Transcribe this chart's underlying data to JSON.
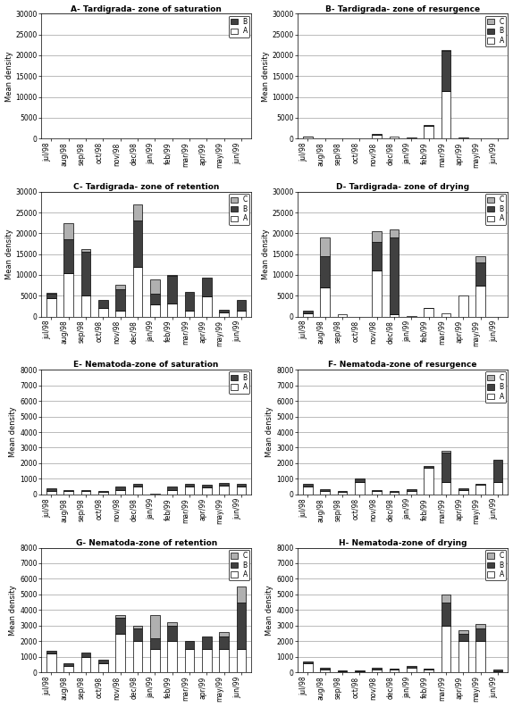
{
  "months": [
    "jul/98",
    "aug/98",
    "sep/98",
    "oct/98",
    "nov/98",
    "dec/98",
    "jan/99",
    "feb/99",
    "mar/99",
    "apr/99",
    "may/99",
    "jun/99"
  ],
  "panels": [
    {
      "title": "A- Tardigrada- zone of saturation",
      "A": [
        50,
        0,
        0,
        0,
        0,
        0,
        0,
        50,
        0,
        0,
        0,
        0
      ],
      "B": [
        30,
        0,
        0,
        0,
        0,
        0,
        0,
        30,
        0,
        0,
        0,
        0
      ],
      "C": [
        0,
        0,
        0,
        0,
        0,
        0,
        0,
        0,
        0,
        0,
        0,
        0
      ],
      "ylim": 30000,
      "yticks": [
        0,
        5000,
        10000,
        15000,
        20000,
        25000,
        30000
      ],
      "legend_layers": [
        "B",
        "A"
      ],
      "has_C": false
    },
    {
      "title": "B- Tardigrada- zone of resurgence",
      "A": [
        400,
        0,
        0,
        0,
        900,
        400,
        100,
        3000,
        11500,
        0,
        0,
        0
      ],
      "B": [
        100,
        0,
        0,
        0,
        300,
        0,
        100,
        200,
        9500,
        300,
        0,
        0
      ],
      "C": [
        0,
        0,
        0,
        0,
        0,
        0,
        0,
        0,
        200,
        0,
        0,
        0
      ],
      "ylim": 30000,
      "yticks": [
        0,
        5000,
        10000,
        15000,
        20000,
        25000,
        30000
      ],
      "legend_layers": [
        "C",
        "B",
        "A"
      ],
      "has_C": true
    },
    {
      "title": "C- Tardigrada- zone of retention",
      "A": [
        4500,
        10500,
        5000,
        2000,
        1500,
        12000,
        3000,
        3200,
        1500,
        4800,
        1000,
        1500
      ],
      "B": [
        1000,
        8000,
        10500,
        2000,
        5000,
        11000,
        2500,
        6500,
        4500,
        4600,
        700,
        2500
      ],
      "C": [
        200,
        4000,
        800,
        0,
        1200,
        4000,
        3500,
        200,
        0,
        0,
        0,
        0
      ],
      "ylim": 30000,
      "yticks": [
        0,
        5000,
        10000,
        15000,
        20000,
        25000,
        30000
      ],
      "legend_layers": [
        "C",
        "B",
        "A"
      ],
      "has_C": true
    },
    {
      "title": "D- Tardigrada- zone of drying",
      "A": [
        700,
        7000,
        500,
        0,
        11000,
        500,
        200,
        2000,
        700,
        5000,
        7500,
        0
      ],
      "B": [
        700,
        7500,
        0,
        0,
        7000,
        18500,
        0,
        100,
        0,
        0,
        5500,
        0
      ],
      "C": [
        0,
        4500,
        0,
        0,
        2500,
        2000,
        0,
        0,
        0,
        0,
        1500,
        0
      ],
      "ylim": 30000,
      "yticks": [
        0,
        5000,
        10000,
        15000,
        20000,
        25000,
        30000
      ],
      "legend_layers": [
        "C",
        "B",
        "A"
      ],
      "has_C": true
    },
    {
      "title": "E- Nematoda-zone of saturation",
      "A": [
        200,
        200,
        200,
        150,
        300,
        500,
        50,
        300,
        500,
        450,
        550,
        500
      ],
      "B": [
        200,
        100,
        100,
        100,
        200,
        200,
        0,
        200,
        200,
        150,
        200,
        200
      ],
      "C": [
        0,
        0,
        0,
        0,
        0,
        0,
        0,
        0,
        0,
        0,
        0,
        0
      ],
      "ylim": 8000,
      "yticks": [
        0,
        1000,
        2000,
        3000,
        4000,
        5000,
        6000,
        7000,
        8000
      ],
      "legend_layers": [
        "B",
        "A"
      ],
      "has_C": false
    },
    {
      "title": "F- Nematoda-zone of resurgence",
      "A": [
        500,
        250,
        150,
        800,
        200,
        150,
        250,
        1700,
        800,
        300,
        600,
        800
      ],
      "B": [
        200,
        100,
        50,
        200,
        100,
        50,
        100,
        100,
        1900,
        100,
        100,
        1400
      ],
      "C": [
        0,
        0,
        0,
        0,
        0,
        0,
        0,
        0,
        100,
        0,
        0,
        0
      ],
      "ylim": 8000,
      "yticks": [
        0,
        1000,
        2000,
        3000,
        4000,
        5000,
        6000,
        7000,
        8000
      ],
      "legend_layers": [
        "C",
        "B",
        "A"
      ],
      "has_C": true
    },
    {
      "title": "G- Nematoda-zone of retention",
      "A": [
        1200,
        400,
        1000,
        600,
        2500,
        2000,
        1500,
        2000,
        1500,
        1500,
        1500,
        1500
      ],
      "B": [
        200,
        200,
        300,
        200,
        1000,
        800,
        700,
        1000,
        500,
        800,
        800,
        3000
      ],
      "C": [
        0,
        0,
        0,
        0,
        200,
        200,
        1500,
        200,
        0,
        0,
        300,
        1000
      ],
      "ylim": 8000,
      "yticks": [
        0,
        1000,
        2000,
        3000,
        4000,
        5000,
        6000,
        7000,
        8000
      ],
      "legend_layers": [
        "C",
        "B",
        "A"
      ],
      "has_C": true
    },
    {
      "title": "H- Nematoda-zone of drying",
      "A": [
        600,
        200,
        100,
        100,
        200,
        200,
        300,
        200,
        3000,
        2000,
        2000,
        100
      ],
      "B": [
        100,
        100,
        50,
        50,
        100,
        50,
        100,
        50,
        1500,
        500,
        800,
        100
      ],
      "C": [
        0,
        0,
        0,
        0,
        0,
        0,
        0,
        0,
        500,
        200,
        300,
        0
      ],
      "ylim": 8000,
      "yticks": [
        0,
        1000,
        2000,
        3000,
        4000,
        5000,
        6000,
        7000,
        8000
      ],
      "legend_layers": [
        "C",
        "B",
        "A"
      ],
      "has_C": true
    }
  ],
  "colors": {
    "A": "#ffffff",
    "B": "#404040",
    "C": "#b0b0b0"
  },
  "edgecolor": "#000000",
  "bar_width": 0.55
}
